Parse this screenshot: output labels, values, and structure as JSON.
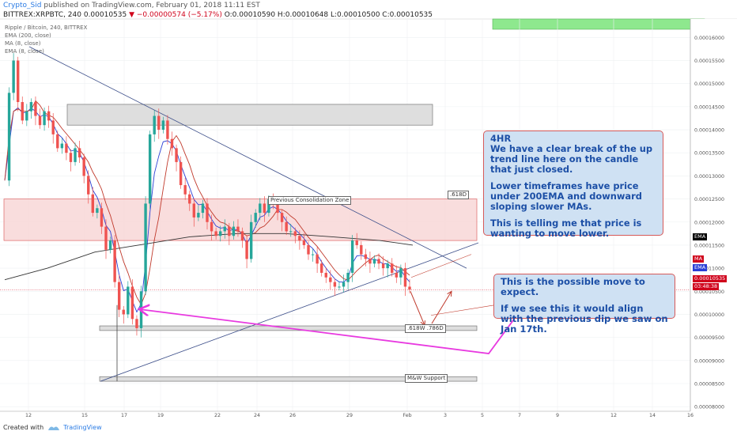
{
  "header": {
    "author": "Crypto_Sid",
    "published": "published on TradingView.com, February 01, 2018 11:11 EST",
    "symbol_info": "BITTREX:XRPBTC, 240  0.00010535",
    "change": "▼ −0.00000574 (−5.17%)",
    "ohlc": "O:0.00010590 H:0.00010648 L:0.00010500 C:0.00010535"
  },
  "indicators": {
    "pair": "Ripple / Bitcoin, 240, BITTREX",
    "ema200": "EMA (200, close)",
    "ma": "MA (8, close)",
    "ema8": "EMA (8, close)"
  },
  "chart_data": {
    "type": "candlestick",
    "symbol": "XRPBTC",
    "timeframe": "240",
    "ylim": [
      7.9e-05,
      0.000164
    ],
    "y_ticks": [
      "0.00016000",
      "0.00015500",
      "0.00015000",
      "0.00014500",
      "0.00014000",
      "0.00013500",
      "0.00013000",
      "0.00012500",
      "0.00012000",
      "0.00011500",
      "0.00011000",
      "0.00010500",
      "0.00010000",
      "0.00009500",
      "0.00009000",
      "0.00008500",
      "0.00008000"
    ],
    "x_ticks": [
      "12",
      "15",
      "17",
      "19",
      "22",
      "24",
      "26",
      "29",
      "Feb",
      "3",
      "5",
      "7",
      "9",
      "12",
      "14",
      "16"
    ],
    "close_path": [
      0.000129,
      0.000148,
      0.000155,
      0.000146,
      0.000142,
      0.000144,
      0.000146,
      0.000143,
      0.000141,
      0.000144,
      0.000142,
      0.000139,
      0.000136,
      0.000137,
      0.000135,
      0.000133,
      0.000136,
      0.000134,
      0.00013,
      0.000126,
      0.000122,
      0.000123,
      0.000119,
      0.000114,
      0.000116,
      0.000107,
      0.000101,
      0.0001,
      0.000106,
      9.9e-05,
      9.7e-05,
      0.000105,
      0.000124,
      0.000139,
      0.000143,
      0.00014,
      0.000142,
      0.000138,
      0.000136,
      0.000133,
      0.000128,
      0.000126,
      0.000124,
      0.000121,
      0.000122,
      0.000124,
      0.00012,
      0.000118,
      0.000117,
      0.000118,
      0.000119,
      0.000117,
      0.000119,
      0.000118,
      0.000116,
      0.000112,
      0.00012,
      0.000122,
      0.000124,
      0.000122,
      0.000125,
      0.000124,
      0.000122,
      0.00012,
      0.000118,
      0.000118,
      0.000117,
      0.000116,
      0.000115,
      0.000113,
      0.000113,
      0.000111,
      0.000109,
      0.000108,
      0.000107,
      0.000106,
      0.000106,
      0.000107,
      0.000109,
      0.000116,
      0.000115,
      0.000113,
      0.000112,
      0.000111,
      0.000112,
      0.000111,
      0.00011,
      0.000111,
      0.000109,
      0.000108,
      0.00011,
      0.000106,
      0.00010535
    ],
    "zones": [
      {
        "low": 0.000141,
        "high": 0.0001455,
        "label": ""
      },
      {
        "low": 0.000116,
        "high": 0.000125,
        "label": "Previous Consolidation Zone",
        "fib": ".618D"
      },
      {
        "low": 9.65e-05,
        "high": 9.75e-05,
        "label": ".618W .786D"
      },
      {
        "low": 8.55e-05,
        "high": 8.65e-05,
        "label": "M&W Support"
      }
    ],
    "price_labels": {
      "current": "0.00010535",
      "countdown": "03:48:38",
      "ema": "EMA",
      "ma": "MA",
      "ema2": "EMA"
    }
  },
  "annotations": {
    "callout1": {
      "title": "4HR",
      "p1": "We have a clear break of the up trend line here on the candle that just closed.",
      "p2": "Lower timeframes have price under 200EMA and downward sloping slower MAs.",
      "p3": "This is telling me that price is wanting to move lower."
    },
    "callout2": {
      "p1": "This is the possible move to expect.",
      "p2": "If we see this it would align with the previous dip we saw on Jan 17th."
    }
  },
  "footer": {
    "created": "Created with",
    "brand": "TradingView"
  },
  "colors": {
    "up": "#26a69a",
    "down": "#ef5350",
    "ema8": "#2a3fd6",
    "ma8": "#c0392b",
    "ema200": "#333333",
    "magenta": "#e83ae0",
    "zone_red": "#f8d7d7",
    "zone_grey": "#d8d8d8",
    "callout_bg": "#cfe1f3"
  }
}
